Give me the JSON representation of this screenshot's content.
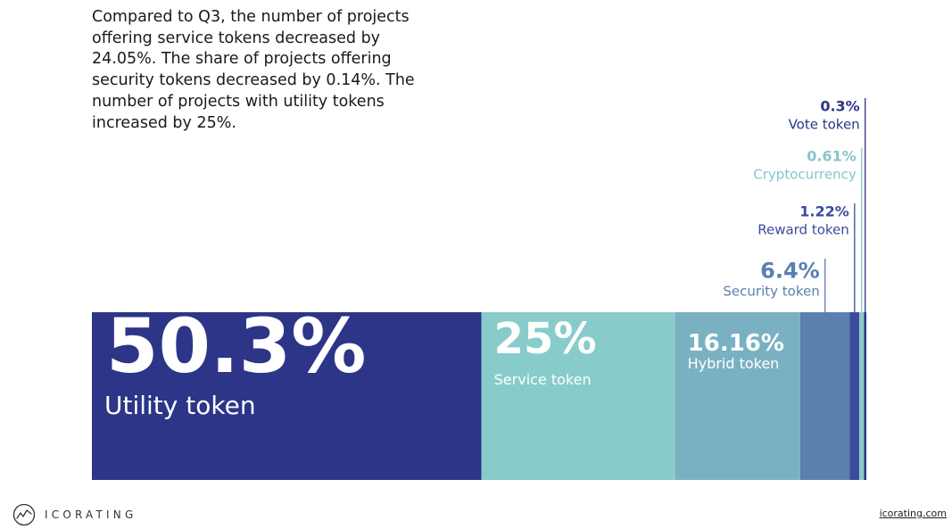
{
  "intro_text": "Compared to Q3, the number of projects offering service tokens decreased by 24.05%. The share of projects offering security tokens decreased by 0.14%. The number of projects with utility tokens increased by 25%.",
  "brand": {
    "name": "ICORATING",
    "link": "icorating.com"
  },
  "colors": {
    "utility": "#2c3587",
    "service": "#88cbcb",
    "hybrid": "#7ab1c2",
    "security": "#5980af",
    "reward": "#3c4b9c",
    "crypto": "#8cc8cc",
    "vote": "#2c3587"
  },
  "chart_data": {
    "type": "bar",
    "stacked": true,
    "orientation": "horizontal",
    "unit": "%",
    "categories": [
      "Utility token",
      "Service token",
      "Hybrid token",
      "Security token",
      "Reward token",
      "Cryptocurrency",
      "Vote token"
    ],
    "value_labels": [
      "50.3%",
      "25%",
      "16.16%",
      "6.4%",
      "1.22%",
      "0.61%",
      "0.3%"
    ],
    "values": [
      50.3,
      25,
      16.16,
      6.4,
      1.22,
      0.61,
      0.3
    ],
    "series": [
      {
        "name": "Utility token",
        "value": 50.3,
        "label": "50.3%",
        "color": "#2c3587",
        "callout": false
      },
      {
        "name": "Service token",
        "value": 25,
        "label": "25%",
        "color": "#88cbcb",
        "callout": false
      },
      {
        "name": "Hybrid token",
        "value": 16.16,
        "label": "16.16%",
        "color": "#7ab1c2",
        "callout": false
      },
      {
        "name": "Security token",
        "value": 6.4,
        "label": "6.4%",
        "color": "#5980af",
        "callout": true
      },
      {
        "name": "Reward token",
        "value": 1.22,
        "label": "1.22%",
        "color": "#3c4b9c",
        "callout": true
      },
      {
        "name": "Cryptocurrency",
        "value": 0.61,
        "label": "0.61%",
        "color": "#8cc8cc",
        "callout": true
      },
      {
        "name": "Vote token",
        "value": 0.3,
        "label": "0.3%",
        "color": "#2c3587",
        "callout": true
      }
    ],
    "legend": "none",
    "grid": false
  }
}
